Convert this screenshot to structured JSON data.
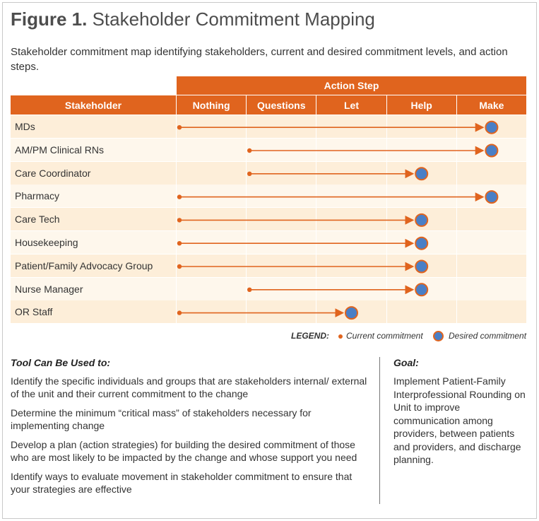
{
  "figure": {
    "label": "Figure 1.",
    "title": "Stakeholder Commitment Mapping",
    "subtitle": "Stakeholder commitment map identifying stakeholders, current and desired commitment levels, and action steps."
  },
  "table": {
    "group_header": "Action Step",
    "stakeholder_header": "Stakeholder",
    "columns": [
      "Nothing",
      "Questions",
      "Let",
      "Help",
      "Make"
    ],
    "rows": [
      {
        "label": "MDs",
        "current": "Nothing",
        "desired": "Make"
      },
      {
        "label": "AM/PM Clinical RNs",
        "current": "Questions",
        "desired": "Make"
      },
      {
        "label": "Care Coordinator",
        "current": "Questions",
        "desired": "Help"
      },
      {
        "label": "Pharmacy",
        "current": "Nothing",
        "desired": "Make"
      },
      {
        "label": "Care Tech",
        "current": "Nothing",
        "desired": "Help"
      },
      {
        "label": "Housekeeping",
        "current": "Nothing",
        "desired": "Help"
      },
      {
        "label": "Patient/Family Advocacy Group",
        "current": "Nothing",
        "desired": "Help"
      },
      {
        "label": "Nurse Manager",
        "current": "Questions",
        "desired": "Help"
      },
      {
        "label": "OR Staff",
        "current": "Nothing",
        "desired": "Let"
      }
    ]
  },
  "legend": {
    "title": "LEGEND:",
    "current": "Current commitment",
    "desired": "Desired commitment"
  },
  "tool": {
    "heading": "Tool Can Be Used to:",
    "items": [
      "Identify the specific individuals and groups that are stakeholders internal/ external of the unit and their current commitment to the change",
      "Determine the minimum “critical mass” of stakeholders necessary for implementing change",
      "Develop a plan (action strategies) for building the desired commitment of those who are most likely to be impacted by the change and whose support you need",
      "Identify ways to evaluate movement in stakeholder commitment to ensure that your strategies are effective"
    ]
  },
  "goal": {
    "heading": "Goal:",
    "text": "Implement Patient-Family Interprofessional Rounding on Unit to improve communication among providers, between patients and providers, and discharge planning."
  },
  "colors": {
    "accent": "#e0641e",
    "row_tint": "#fdeed9",
    "row_plain": "#fef7ec",
    "desired_fill": "#4a7fc6"
  }
}
